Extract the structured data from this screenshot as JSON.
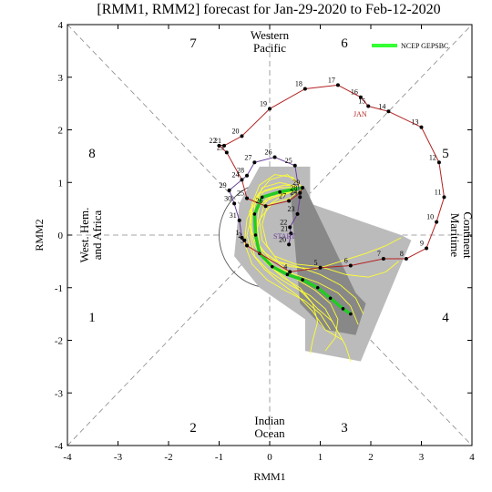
{
  "chart_data": {
    "type": "line",
    "title": "[RMM1, RMM2] forecast for Jan-29-2020 to Feb-12-2020",
    "xlabel": "RMM1",
    "ylabel": "RMM2",
    "xlim": [
      -4,
      4
    ],
    "ylim": [
      -4,
      4
    ],
    "xticks": [
      "-4",
      "-3",
      "-2",
      "-1",
      "0",
      "1",
      "2",
      "3",
      "4"
    ],
    "yticks": [
      "-4",
      "-3",
      "-2",
      "-1",
      "0",
      "1",
      "2",
      "3",
      "4"
    ],
    "phases": [
      "1",
      "2",
      "3",
      "4",
      "5",
      "6",
      "7",
      "8"
    ],
    "regions": {
      "top": [
        "Western",
        "Pacific"
      ],
      "bottom": [
        "Indian",
        "Ocean"
      ],
      "left": [
        "West. Hem.",
        "and Africa"
      ],
      "right": [
        "Maritime",
        "Continent"
      ]
    },
    "legend": {
      "label": "NCEP GEPSBC",
      "color": "#33ff33",
      "position": "top-right"
    },
    "annotations": {
      "start": "START",
      "jan": "JAN"
    },
    "colors": {
      "dec_track": "#6a3d9a",
      "jan_track": "#b22222",
      "ensemble": "#ffff33",
      "mean": "#22cc22",
      "spread_light": "#bbbbbb",
      "spread_dark": "#888888"
    },
    "observed_dec": [
      {
        "label": "20",
        "x": 0.38,
        "y": -0.18
      },
      {
        "label": "21",
        "x": 0.42,
        "y": 0.03
      },
      {
        "label": "22",
        "x": 0.4,
        "y": 0.15
      },
      {
        "label": "23",
        "x": 0.55,
        "y": 0.4
      },
      {
        "label": "24",
        "x": 0.6,
        "y": 0.72
      },
      {
        "label": "25",
        "x": 0.5,
        "y": 1.32
      },
      {
        "label": "26",
        "x": 0.1,
        "y": 1.48
      },
      {
        "label": "27",
        "x": -0.3,
        "y": 1.38
      },
      {
        "label": "28",
        "x": -0.45,
        "y": 1.13
      },
      {
        "label": "29",
        "x": -0.8,
        "y": 0.85
      },
      {
        "label": "30",
        "x": -0.7,
        "y": 0.6
      },
      {
        "label": "31",
        "x": -0.6,
        "y": 0.28
      }
    ],
    "observed_jan": [
      {
        "label": "1",
        "x": -0.55,
        "y": -0.05
      },
      {
        "label": "2",
        "x": -0.5,
        "y": -0.1
      },
      {
        "label": "3",
        "x": -0.45,
        "y": -0.2
      },
      {
        "label": "4",
        "x": 0.4,
        "y": -0.7
      },
      {
        "label": "5",
        "x": 1.0,
        "y": -0.62
      },
      {
        "label": "6",
        "x": 1.6,
        "y": -0.58
      },
      {
        "label": "7",
        "x": 2.25,
        "y": -0.45
      },
      {
        "label": "8",
        "x": 2.7,
        "y": -0.45
      },
      {
        "label": "9",
        "x": 3.1,
        "y": -0.25
      },
      {
        "label": "10",
        "x": 3.3,
        "y": 0.25
      },
      {
        "label": "11",
        "x": 3.45,
        "y": 0.72
      },
      {
        "label": "12",
        "x": 3.35,
        "y": 1.38
      },
      {
        "label": "13",
        "x": 3.0,
        "y": 2.05
      },
      {
        "label": "14",
        "x": 2.35,
        "y": 2.35
      },
      {
        "label": "15",
        "x": 1.95,
        "y": 2.45
      },
      {
        "label": "16",
        "x": 1.8,
        "y": 2.62
      },
      {
        "label": "17",
        "x": 1.35,
        "y": 2.85
      },
      {
        "label": "18",
        "x": 0.7,
        "y": 2.78
      },
      {
        "label": "19",
        "x": 0.0,
        "y": 2.4
      },
      {
        "label": "20",
        "x": -0.55,
        "y": 1.88
      },
      {
        "label": "21",
        "x": -0.9,
        "y": 1.7
      },
      {
        "label": "22",
        "x": -1.0,
        "y": 1.7
      },
      {
        "label": "23",
        "x": -0.85,
        "y": 1.57
      },
      {
        "label": "24",
        "x": -0.55,
        "y": 1.05
      },
      {
        "label": "25",
        "x": -0.45,
        "y": 0.7
      },
      {
        "label": "26",
        "x": -0.08,
        "y": 0.55
      },
      {
        "label": "27",
        "x": 0.38,
        "y": 0.65
      },
      {
        "label": "28",
        "x": 0.6,
        "y": 0.8
      },
      {
        "label": "29",
        "x": 0.65,
        "y": 0.9
      }
    ],
    "ensemble_mean": [
      {
        "x": 0.65,
        "y": 0.9
      },
      {
        "x": 0.2,
        "y": 0.82
      },
      {
        "x": -0.15,
        "y": 0.72
      },
      {
        "x": -0.3,
        "y": 0.4
      },
      {
        "x": -0.28,
        "y": 0.0
      },
      {
        "x": -0.2,
        "y": -0.35
      },
      {
        "x": 0.05,
        "y": -0.6
      },
      {
        "x": 0.35,
        "y": -0.75
      },
      {
        "x": 0.65,
        "y": -0.85
      },
      {
        "x": 0.95,
        "y": -1.0
      },
      {
        "x": 1.2,
        "y": -1.2
      },
      {
        "x": 1.45,
        "y": -1.4
      },
      {
        "x": 1.6,
        "y": -1.5
      }
    ],
    "spread_light": [
      {
        "x": -0.2,
        "y": 1.3
      },
      {
        "x": 0.8,
        "y": 1.3
      },
      {
        "x": 0.8,
        "y": 0.6
      },
      {
        "x": 2.6,
        "y": 0.0
      },
      {
        "x": 2.8,
        "y": -0.1
      },
      {
        "x": 1.8,
        "y": -2.4
      },
      {
        "x": 0.7,
        "y": -2.2
      },
      {
        "x": 0.7,
        "y": -1.6
      },
      {
        "x": -0.2,
        "y": -1.0
      },
      {
        "x": -0.7,
        "y": -0.4
      },
      {
        "x": -0.6,
        "y": 0.6
      }
    ],
    "spread_dark": [
      {
        "x": 0.4,
        "y": 0.9
      },
      {
        "x": 0.7,
        "y": 0.9
      },
      {
        "x": 1.7,
        "y": -1.1
      },
      {
        "x": 1.9,
        "y": -1.3
      },
      {
        "x": 1.7,
        "y": -1.9
      },
      {
        "x": 1.1,
        "y": -1.8
      },
      {
        "x": 0.6,
        "y": -1.3
      }
    ],
    "ensemble_members": [
      [
        {
          "x": 0.65,
          "y": 0.9
        },
        {
          "x": 0.3,
          "y": 0.95
        },
        {
          "x": -0.1,
          "y": 0.85
        },
        {
          "x": -0.35,
          "y": 0.5
        },
        {
          "x": -0.38,
          "y": 0.0
        },
        {
          "x": -0.3,
          "y": -0.4
        },
        {
          "x": 0.0,
          "y": -0.7
        },
        {
          "x": 0.4,
          "y": -0.95
        },
        {
          "x": 0.8,
          "y": -1.15
        },
        {
          "x": 1.1,
          "y": -1.4
        },
        {
          "x": 1.3,
          "y": -1.75
        },
        {
          "x": 1.5,
          "y": -2.1
        },
        {
          "x": 1.6,
          "y": -2.4
        }
      ],
      [
        {
          "x": 0.65,
          "y": 0.9
        },
        {
          "x": 0.1,
          "y": 0.72
        },
        {
          "x": -0.2,
          "y": 0.6
        },
        {
          "x": -0.25,
          "y": 0.2
        },
        {
          "x": -0.2,
          "y": -0.2
        },
        {
          "x": 0.0,
          "y": -0.45
        },
        {
          "x": 0.4,
          "y": -0.6
        },
        {
          "x": 0.9,
          "y": -0.65
        },
        {
          "x": 1.4,
          "y": -0.5
        },
        {
          "x": 1.9,
          "y": -0.35
        },
        {
          "x": 2.3,
          "y": -0.2
        },
        {
          "x": 2.6,
          "y": -0.05
        }
      ],
      [
        {
          "x": 0.65,
          "y": 0.9
        },
        {
          "x": 0.25,
          "y": 0.75
        },
        {
          "x": -0.05,
          "y": 0.55
        },
        {
          "x": -0.15,
          "y": 0.2
        },
        {
          "x": -0.05,
          "y": -0.2
        },
        {
          "x": 0.2,
          "y": -0.55
        },
        {
          "x": 0.55,
          "y": -0.85
        },
        {
          "x": 0.9,
          "y": -1.05
        },
        {
          "x": 1.2,
          "y": -1.3
        },
        {
          "x": 1.35,
          "y": -1.6
        },
        {
          "x": 1.3,
          "y": -1.95
        },
        {
          "x": 1.1,
          "y": -2.2
        }
      ],
      [
        {
          "x": 0.65,
          "y": 0.9
        },
        {
          "x": 0.35,
          "y": 1.15
        },
        {
          "x": 0.0,
          "y": 1.05
        },
        {
          "x": -0.25,
          "y": 0.75
        },
        {
          "x": -0.45,
          "y": 0.3
        },
        {
          "x": -0.5,
          "y": -0.15
        },
        {
          "x": -0.35,
          "y": -0.55
        },
        {
          "x": -0.05,
          "y": -0.85
        },
        {
          "x": 0.3,
          "y": -1.05
        },
        {
          "x": 0.7,
          "y": -1.25
        },
        {
          "x": 1.0,
          "y": -1.5
        },
        {
          "x": 1.2,
          "y": -1.8
        }
      ],
      [
        {
          "x": 0.65,
          "y": 0.9
        },
        {
          "x": 0.15,
          "y": 0.9
        },
        {
          "x": -0.2,
          "y": 0.8
        },
        {
          "x": -0.4,
          "y": 0.45
        },
        {
          "x": -0.35,
          "y": 0.05
        },
        {
          "x": -0.15,
          "y": -0.3
        },
        {
          "x": 0.15,
          "y": -0.5
        },
        {
          "x": 0.55,
          "y": -0.6
        },
        {
          "x": 1.0,
          "y": -0.75
        },
        {
          "x": 1.4,
          "y": -0.95
        },
        {
          "x": 1.7,
          "y": -1.2
        },
        {
          "x": 1.85,
          "y": -1.5
        }
      ],
      [
        {
          "x": 0.65,
          "y": 0.9
        },
        {
          "x": 0.4,
          "y": 0.7
        },
        {
          "x": 0.05,
          "y": 0.6
        },
        {
          "x": -0.2,
          "y": 0.3
        },
        {
          "x": -0.3,
          "y": -0.1
        },
        {
          "x": -0.1,
          "y": -0.5
        },
        {
          "x": 0.25,
          "y": -0.8
        },
        {
          "x": 0.6,
          "y": -1.0
        },
        {
          "x": 0.85,
          "y": -1.3
        },
        {
          "x": 0.95,
          "y": -1.65
        },
        {
          "x": 0.85,
          "y": -2.0
        },
        {
          "x": 0.8,
          "y": -2.25
        }
      ],
      [
        {
          "x": 0.65,
          "y": 0.9
        },
        {
          "x": 0.2,
          "y": 1.0
        },
        {
          "x": -0.15,
          "y": 0.9
        },
        {
          "x": -0.3,
          "y": 0.55
        },
        {
          "x": -0.3,
          "y": 0.1
        },
        {
          "x": -0.2,
          "y": -0.3
        },
        {
          "x": 0.1,
          "y": -0.6
        },
        {
          "x": 0.5,
          "y": -0.75
        },
        {
          "x": 0.95,
          "y": -0.9
        },
        {
          "x": 1.35,
          "y": -1.1
        },
        {
          "x": 1.6,
          "y": -1.35
        },
        {
          "x": 1.75,
          "y": -1.7
        }
      ],
      [
        {
          "x": 0.65,
          "y": 0.9
        },
        {
          "x": 0.3,
          "y": 0.8
        },
        {
          "x": -0.05,
          "y": 0.7
        },
        {
          "x": -0.35,
          "y": 0.4
        },
        {
          "x": -0.45,
          "y": 0.0
        },
        {
          "x": -0.35,
          "y": -0.35
        },
        {
          "x": -0.1,
          "y": -0.65
        },
        {
          "x": 0.2,
          "y": -0.9
        },
        {
          "x": 0.55,
          "y": -1.15
        },
        {
          "x": 0.85,
          "y": -1.45
        },
        {
          "x": 1.1,
          "y": -1.8
        },
        {
          "x": 1.45,
          "y": -2.0
        }
      ],
      [
        {
          "x": 0.65,
          "y": 0.9
        },
        {
          "x": 0.1,
          "y": 0.8
        },
        {
          "x": -0.1,
          "y": 0.6
        },
        {
          "x": -0.2,
          "y": 0.25
        },
        {
          "x": -0.15,
          "y": -0.1
        },
        {
          "x": 0.1,
          "y": -0.4
        },
        {
          "x": 0.5,
          "y": -0.55
        },
        {
          "x": 1.0,
          "y": -0.6
        },
        {
          "x": 1.5,
          "y": -0.75
        },
        {
          "x": 1.95,
          "y": -0.8
        },
        {
          "x": 2.3,
          "y": -0.7
        },
        {
          "x": 2.55,
          "y": -0.5
        }
      ],
      [
        {
          "x": 0.65,
          "y": 0.9
        },
        {
          "x": 0.45,
          "y": 1.1
        },
        {
          "x": 0.1,
          "y": 1.15
        },
        {
          "x": -0.2,
          "y": 0.95
        },
        {
          "x": -0.35,
          "y": 0.6
        },
        {
          "x": -0.4,
          "y": 0.2
        },
        {
          "x": -0.3,
          "y": -0.2
        },
        {
          "x": -0.05,
          "y": -0.55
        },
        {
          "x": 0.3,
          "y": -0.8
        },
        {
          "x": 0.65,
          "y": -1.1
        },
        {
          "x": 0.95,
          "y": -1.4
        },
        {
          "x": 1.25,
          "y": -1.65
        }
      ]
    ]
  }
}
